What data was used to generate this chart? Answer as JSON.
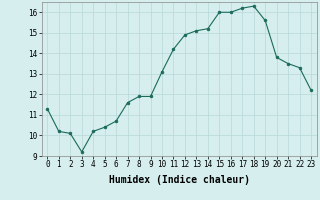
{
  "x": [
    0,
    1,
    2,
    3,
    4,
    5,
    6,
    7,
    8,
    9,
    10,
    11,
    12,
    13,
    14,
    15,
    16,
    17,
    18,
    19,
    20,
    21,
    22,
    23
  ],
  "y": [
    11.3,
    10.2,
    10.1,
    9.2,
    10.2,
    10.4,
    10.7,
    11.6,
    11.9,
    11.9,
    13.1,
    14.2,
    14.9,
    15.1,
    15.2,
    16.0,
    16.0,
    16.2,
    16.3,
    15.6,
    13.8,
    13.5,
    13.3,
    12.2
  ],
  "xlabel": "Humidex (Indice chaleur)",
  "ylim": [
    9,
    16.5
  ],
  "xlim": [
    -0.5,
    23.5
  ],
  "yticks": [
    9,
    10,
    11,
    12,
    13,
    14,
    15,
    16
  ],
  "xticks": [
    0,
    1,
    2,
    3,
    4,
    5,
    6,
    7,
    8,
    9,
    10,
    11,
    12,
    13,
    14,
    15,
    16,
    17,
    18,
    19,
    20,
    21,
    22,
    23
  ],
  "xtick_labels": [
    "0",
    "1",
    "2",
    "3",
    "4",
    "5",
    "6",
    "7",
    "8",
    "9",
    "10",
    "11",
    "12",
    "13",
    "14",
    "15",
    "16",
    "17",
    "18",
    "19",
    "20",
    "21",
    "22",
    "23"
  ],
  "line_color": "#1a6b5a",
  "marker_color": "#1a6b5a",
  "bg_color": "#d6eeee",
  "grid_color": "#b8d8d8",
  "xlabel_fontsize": 7,
  "tick_fontsize": 5.5
}
